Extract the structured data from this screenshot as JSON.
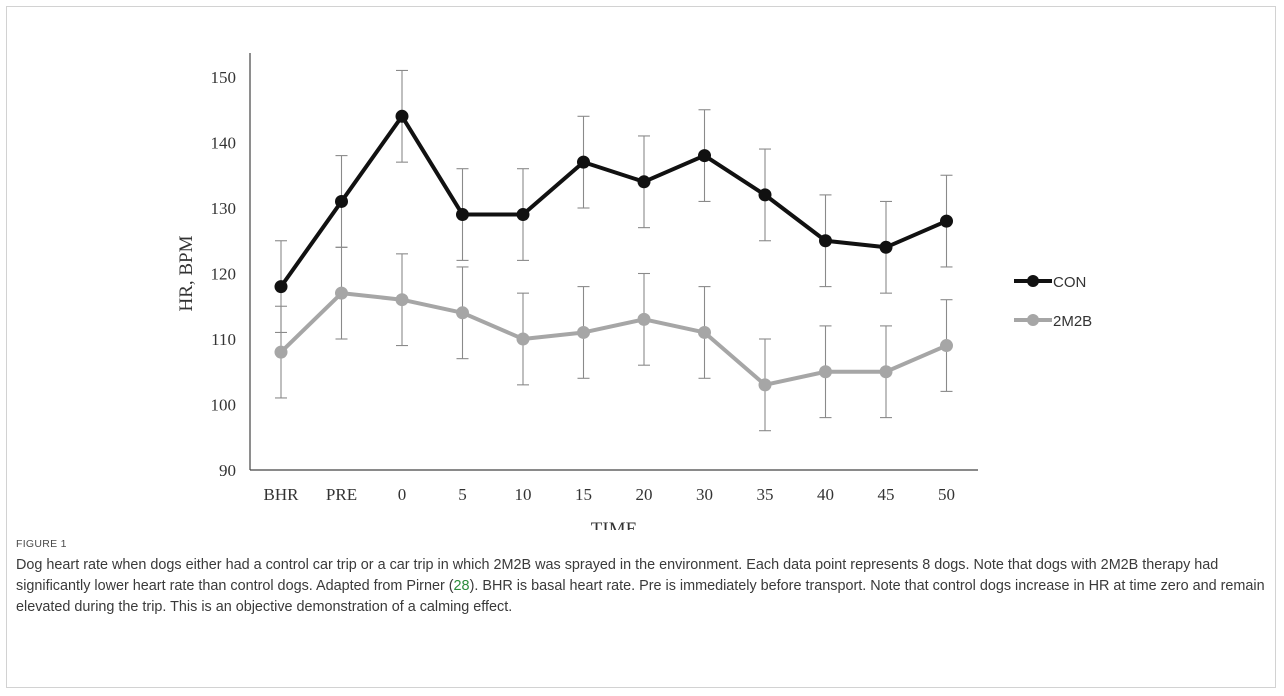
{
  "figure": {
    "label": "FIGURE 1",
    "caption": {
      "before_ref1": "Dog heart rate when dogs either had a control car trip or a car trip in which 2M2B was sprayed in the environment. Each data point represents 8 dogs. Note that dogs with 2M2B therapy had significantly lower heart rate than control dogs. Adapted from Pirner (",
      "ref1": "28",
      "after_ref1": "). BHR is basal heart rate. Pre is immediately before transport. Note that control dogs increase in HR at time zero and remain elevated during the trip. This is an objective demonstration of a calming effect."
    }
  },
  "chart_data": {
    "type": "line",
    "title": "",
    "xlabel": "TIME",
    "ylabel": "HR, BPM",
    "categories": [
      "BHR",
      "PRE",
      "0",
      "5",
      "10",
      "15",
      "20",
      "30",
      "35",
      "40",
      "45",
      "50"
    ],
    "ylim": [
      90,
      150
    ],
    "yticks": [
      90,
      100,
      110,
      120,
      130,
      140,
      150
    ],
    "grid": false,
    "legend_position": "right",
    "error_bar": 7,
    "series": [
      {
        "name": "CON",
        "color": "#111111",
        "values": [
          118,
          131,
          144,
          129,
          129,
          137,
          134,
          138,
          132,
          125,
          124,
          128
        ]
      },
      {
        "name": "2M2B",
        "color": "#a6a6a6",
        "values": [
          108,
          117,
          116,
          114,
          110,
          111,
          113,
          111,
          103,
          105,
          105,
          109
        ]
      }
    ]
  }
}
